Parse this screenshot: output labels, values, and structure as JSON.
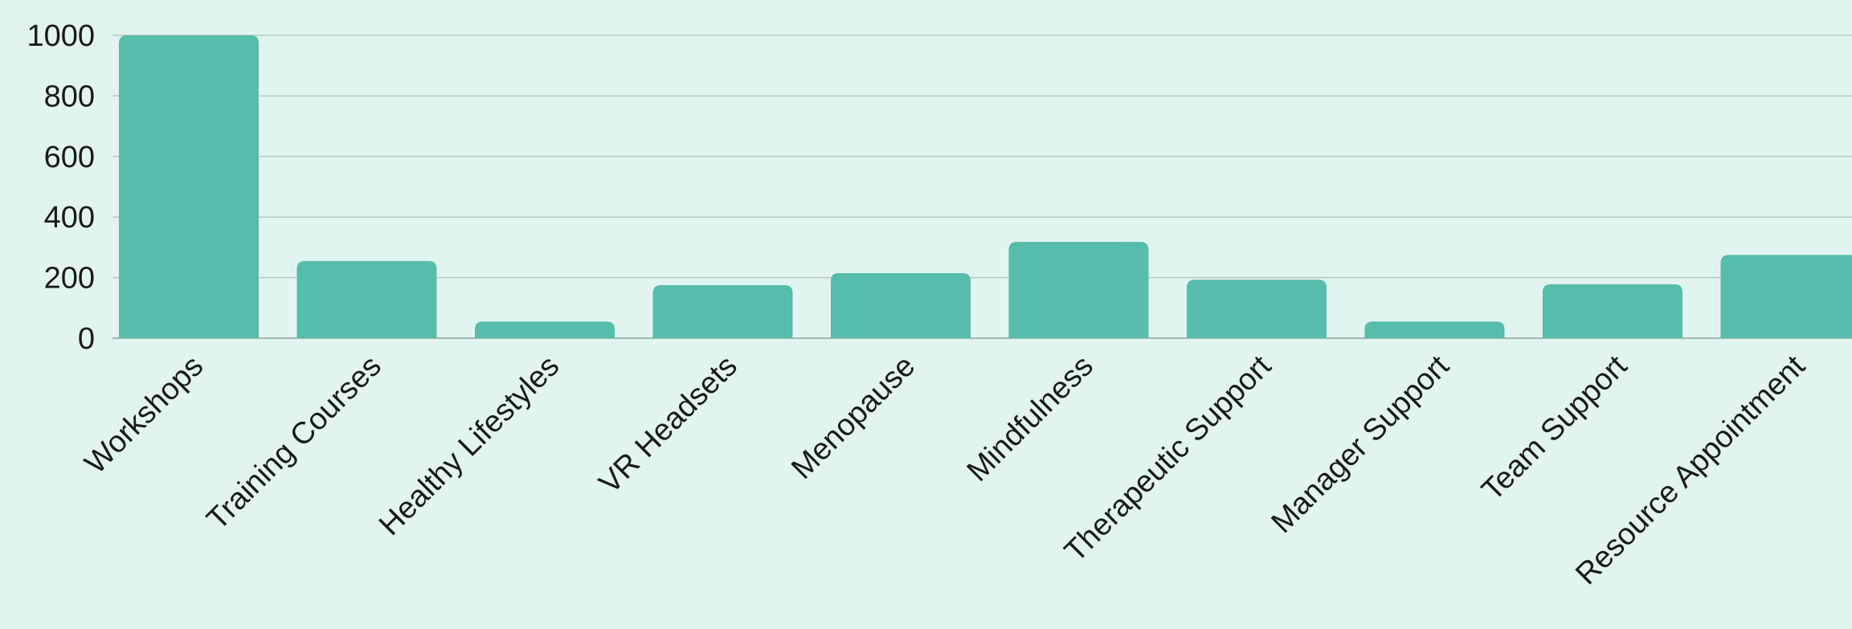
{
  "chart_data": {
    "type": "bar",
    "categories": [
      "Workshops",
      "Training Courses",
      "Healthy Lifestyles",
      "VR Headsets",
      "Menopause",
      "Mindfulness",
      "Therapeutic Support",
      "Manager Support",
      "Team Support",
      "Resource Appointment"
    ],
    "values": [
      1000,
      255,
      55,
      175,
      215,
      318,
      193,
      55,
      178,
      275
    ],
    "ylim": [
      0,
      1000
    ],
    "yticks": [
      "0",
      "200",
      "400",
      "600",
      "800",
      "1000"
    ],
    "grid": true,
    "bar_color": "#56bcab",
    "background_color": "#e2f4ef",
    "title": "",
    "xlabel": "",
    "ylabel": ""
  }
}
